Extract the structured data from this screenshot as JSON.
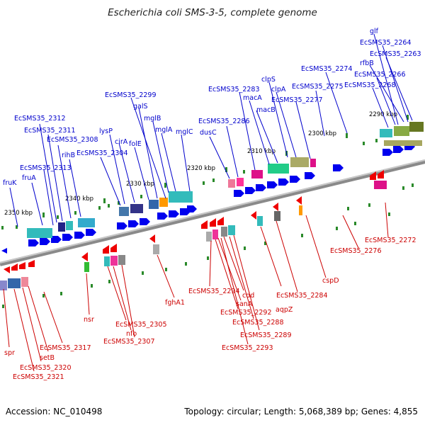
{
  "title": "Escherichia coli SMS-3-5, complete genome",
  "footer": {
    "accession": "Accession: NC_010498",
    "topology": "Topology: circular; Length: 5,068,389 bp; Genes: 4,855"
  },
  "scale_labels": [
    "2350 kbp",
    "2340 kbp",
    "2330 kbp",
    "2320 kbp",
    "2310 kbp",
    "2300 kbp",
    "2290 kbp"
  ],
  "top_gene_labels": [
    "fruK",
    "fruA",
    "EcSMS35_2313",
    "rihB",
    "EcSMS35_2308",
    "EcSMS35_2311",
    "EcSMS35_2312",
    "EcSMS35_2304",
    "lysP",
    "cirA",
    "folE",
    "mglA",
    "mglB",
    "galS",
    "mglC",
    "EcSMS35_2299",
    "dusC",
    "EcSMS35_2286",
    "EcSMS35_2283",
    "macA",
    "macB",
    "clpS",
    "clpA",
    "EcSMS35_2277",
    "EcSMS35_2275",
    "EcSMS35_2274",
    "EcSMS35_2268",
    "EcSMS35_2266",
    "rfbB",
    "EcSMS35_2263",
    "EcSMS35_2264",
    "glf"
  ],
  "bottom_gene_labels": [
    "spr",
    "EcSMS35_2321",
    "EcSMS35_2320",
    "setB",
    "EcSMS35_2317",
    "nsr",
    "EcSMS35_2305",
    "nfo",
    "EcSMS35_2307",
    "fghA1",
    "EcSMS35_2294",
    "cdd",
    "sanA",
    "EcSMS35_2292",
    "EcSMS35_2288",
    "EcSMS35_2289",
    "EcSMS35_2293",
    "aqpZ",
    "EcSMS35_2284",
    "cspD",
    "EcSMS35_2276",
    "EcSMS35_2272"
  ],
  "colors": {
    "top_label": "#0000cc",
    "bottom_label": "#cc0000",
    "forward_gene": "#0000ee",
    "reverse_gene": "#ee0000",
    "backbone": "#888888",
    "orf_green": "#2a8a2a",
    "cog_teal": "#33bbbb",
    "cog_navy": "#222288",
    "cog_orange": "#ff9900",
    "cog_magenta": "#dd1188",
    "cog_olive": "#888822",
    "cog_steel": "#4477aa",
    "cog_gray": "#999999"
  }
}
